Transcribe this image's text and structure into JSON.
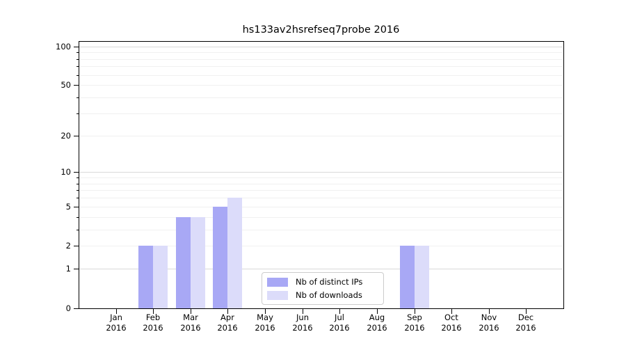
{
  "title": "hs133av2hsrefseq7probe 2016",
  "chart_data": {
    "type": "bar",
    "title": "hs133av2hsrefseq7probe 2016",
    "categories": [
      "Jan 2016",
      "Feb 2016",
      "Mar 2016",
      "Apr 2016",
      "May 2016",
      "Jun 2016",
      "Jul 2016",
      "Aug 2016",
      "Sep 2016",
      "Oct 2016",
      "Nov 2016",
      "Dec 2016"
    ],
    "series": [
      {
        "name": "Nb of distinct IPs",
        "color": "#a8a8f5",
        "values": [
          0,
          2,
          4,
          5,
          0,
          0,
          0,
          0,
          2,
          0,
          0,
          0
        ]
      },
      {
        "name": "Nb of downloads",
        "color": "#dcdcfa",
        "values": [
          0,
          2,
          4,
          6,
          0,
          0,
          0,
          0,
          2,
          0,
          0,
          0
        ]
      }
    ],
    "xlabel": "",
    "ylabel": "",
    "yscale": "log1p",
    "ylim": [
      0,
      110
    ],
    "yticks": {
      "values": [
        0,
        1,
        2,
        5,
        10,
        20,
        50,
        100
      ],
      "labels": [
        "0",
        "1",
        "2",
        "5",
        "10",
        "20",
        "50",
        "100"
      ]
    },
    "grid": "horizontal; major lines at 1, 10, 100; faint minor lines at 2-9 and 20-90",
    "legend_position": "lower center",
    "colors": {
      "background": "#ffffff",
      "axis": "#000000",
      "grid_major": "#d9d9d9",
      "grid_minor": "#f0f0f0",
      "legend_border": "#cccccc",
      "text": "#000000"
    }
  }
}
